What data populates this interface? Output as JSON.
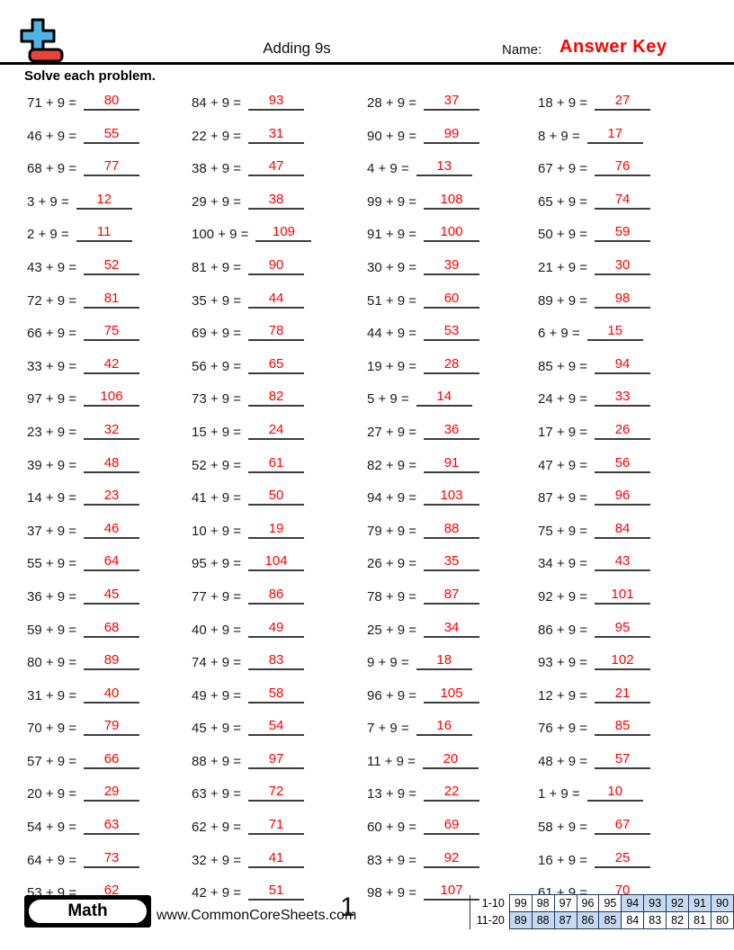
{
  "header": {
    "title": "Adding 9s",
    "name_label": "Name:",
    "answer_key": "Answer Key"
  },
  "instruction": "Solve each problem.",
  "problems": {
    "columns": [
      [
        {
          "q": "71 + 9 =",
          "a": "80"
        },
        {
          "q": "46 + 9 =",
          "a": "55"
        },
        {
          "q": "68 + 9 =",
          "a": "77"
        },
        {
          "q": "3 + 9 =",
          "a": "12"
        },
        {
          "q": "2 + 9 =",
          "a": "11"
        },
        {
          "q": "43 + 9 =",
          "a": "52"
        },
        {
          "q": "72 + 9 =",
          "a": "81"
        },
        {
          "q": "66 + 9 =",
          "a": "75"
        },
        {
          "q": "33 + 9 =",
          "a": "42"
        },
        {
          "q": "97 + 9 =",
          "a": "106"
        },
        {
          "q": "23 + 9 =",
          "a": "32"
        },
        {
          "q": "39 + 9 =",
          "a": "48"
        },
        {
          "q": "14 + 9 =",
          "a": "23"
        },
        {
          "q": "37 + 9 =",
          "a": "46"
        },
        {
          "q": "55 + 9 =",
          "a": "64"
        },
        {
          "q": "36 + 9 =",
          "a": "45"
        },
        {
          "q": "59 + 9 =",
          "a": "68"
        },
        {
          "q": "80 + 9 =",
          "a": "89"
        },
        {
          "q": "31 + 9 =",
          "a": "40"
        },
        {
          "q": "70 + 9 =",
          "a": "79"
        },
        {
          "q": "57 + 9 =",
          "a": "66"
        },
        {
          "q": "20 + 9 =",
          "a": "29"
        },
        {
          "q": "54 + 9 =",
          "a": "63"
        },
        {
          "q": "64 + 9 =",
          "a": "73"
        },
        {
          "q": "53 + 9 =",
          "a": "62"
        }
      ],
      [
        {
          "q": "84 + 9 =",
          "a": "93"
        },
        {
          "q": "22 + 9 =",
          "a": "31"
        },
        {
          "q": "38 + 9 =",
          "a": "47"
        },
        {
          "q": "29 + 9 =",
          "a": "38"
        },
        {
          "q": "100 + 9 =",
          "a": "109"
        },
        {
          "q": "81 + 9 =",
          "a": "90"
        },
        {
          "q": "35 + 9 =",
          "a": "44"
        },
        {
          "q": "69 + 9 =",
          "a": "78"
        },
        {
          "q": "56 + 9 =",
          "a": "65"
        },
        {
          "q": "73 + 9 =",
          "a": "82"
        },
        {
          "q": "15 + 9 =",
          "a": "24"
        },
        {
          "q": "52 + 9 =",
          "a": "61"
        },
        {
          "q": "41 + 9 =",
          "a": "50"
        },
        {
          "q": "10 + 9 =",
          "a": "19"
        },
        {
          "q": "95 + 9 =",
          "a": "104"
        },
        {
          "q": "77 + 9 =",
          "a": "86"
        },
        {
          "q": "40 + 9 =",
          "a": "49"
        },
        {
          "q": "74 + 9 =",
          "a": "83"
        },
        {
          "q": "49 + 9 =",
          "a": "58"
        },
        {
          "q": "45 + 9 =",
          "a": "54"
        },
        {
          "q": "88 + 9 =",
          "a": "97"
        },
        {
          "q": "63 + 9 =",
          "a": "72"
        },
        {
          "q": "62 + 9 =",
          "a": "71"
        },
        {
          "q": "32 + 9 =",
          "a": "41"
        },
        {
          "q": "42 + 9 =",
          "a": "51"
        }
      ],
      [
        {
          "q": "28 + 9 =",
          "a": "37"
        },
        {
          "q": "90 + 9 =",
          "a": "99"
        },
        {
          "q": "4 + 9 =",
          "a": "13"
        },
        {
          "q": "99 + 9 =",
          "a": "108"
        },
        {
          "q": "91 + 9 =",
          "a": "100"
        },
        {
          "q": "30 + 9 =",
          "a": "39"
        },
        {
          "q": "51 + 9 =",
          "a": "60"
        },
        {
          "q": "44 + 9 =",
          "a": "53"
        },
        {
          "q": "19 + 9 =",
          "a": "28"
        },
        {
          "q": "5 + 9 =",
          "a": "14"
        },
        {
          "q": "27 + 9 =",
          "a": "36"
        },
        {
          "q": "82 + 9 =",
          "a": "91"
        },
        {
          "q": "94 + 9 =",
          "a": "103"
        },
        {
          "q": "79 + 9 =",
          "a": "88"
        },
        {
          "q": "26 + 9 =",
          "a": "35"
        },
        {
          "q": "78 + 9 =",
          "a": "87"
        },
        {
          "q": "25 + 9 =",
          "a": "34"
        },
        {
          "q": "9 + 9 =",
          "a": "18"
        },
        {
          "q": "96 + 9 =",
          "a": "105"
        },
        {
          "q": "7 + 9 =",
          "a": "16"
        },
        {
          "q": "11 + 9 =",
          "a": "20"
        },
        {
          "q": "13 + 9 =",
          "a": "22"
        },
        {
          "q": "60 + 9 =",
          "a": "69"
        },
        {
          "q": "83 + 9 =",
          "a": "92"
        },
        {
          "q": "98 + 9 =",
          "a": "107"
        }
      ],
      [
        {
          "q": "18 + 9 =",
          "a": "27"
        },
        {
          "q": "8 + 9 =",
          "a": "17"
        },
        {
          "q": "67 + 9 =",
          "a": "76"
        },
        {
          "q": "65 + 9 =",
          "a": "74"
        },
        {
          "q": "50 + 9 =",
          "a": "59"
        },
        {
          "q": "21 + 9 =",
          "a": "30"
        },
        {
          "q": "89 + 9 =",
          "a": "98"
        },
        {
          "q": "6 + 9 =",
          "a": "15"
        },
        {
          "q": "85 + 9 =",
          "a": "94"
        },
        {
          "q": "24 + 9 =",
          "a": "33"
        },
        {
          "q": "17 + 9 =",
          "a": "26"
        },
        {
          "q": "47 + 9 =",
          "a": "56"
        },
        {
          "q": "87 + 9 =",
          "a": "96"
        },
        {
          "q": "75 + 9 =",
          "a": "84"
        },
        {
          "q": "34 + 9 =",
          "a": "43"
        },
        {
          "q": "92 + 9 =",
          "a": "101"
        },
        {
          "q": "86 + 9 =",
          "a": "95"
        },
        {
          "q": "93 + 9 =",
          "a": "102"
        },
        {
          "q": "12 + 9 =",
          "a": "21"
        },
        {
          "q": "76 + 9 =",
          "a": "85"
        },
        {
          "q": "48 + 9 =",
          "a": "57"
        },
        {
          "q": "1 + 9 =",
          "a": "10"
        },
        {
          "q": "58 + 9 =",
          "a": "67"
        },
        {
          "q": "16 + 9 =",
          "a": "25"
        },
        {
          "q": "61 + 9 =",
          "a": "70"
        }
      ]
    ]
  },
  "footer": {
    "subject": "Math",
    "website": "www.CommonCoreSheets.com",
    "page": "1",
    "score_table": {
      "rows": [
        {
          "label": "1-10",
          "cells": [
            "99",
            "98",
            "97",
            "96",
            "95",
            "94",
            "93",
            "92",
            "91",
            "90"
          ],
          "shaded": [
            false,
            false,
            false,
            false,
            false,
            true,
            true,
            true,
            true,
            true
          ]
        },
        {
          "label": "11-20",
          "cells": [
            "89",
            "88",
            "87",
            "86",
            "85",
            "84",
            "83",
            "82",
            "81",
            "80"
          ],
          "shaded": [
            true,
            true,
            true,
            true,
            true,
            false,
            false,
            false,
            false,
            false
          ]
        }
      ]
    }
  },
  "colors": {
    "answer_red": "#ff0000",
    "logo_blue": "#4fb3e3",
    "logo_red": "#e8433f",
    "cell_shade": "#c6d9f1",
    "table_border": "#1f3864"
  }
}
